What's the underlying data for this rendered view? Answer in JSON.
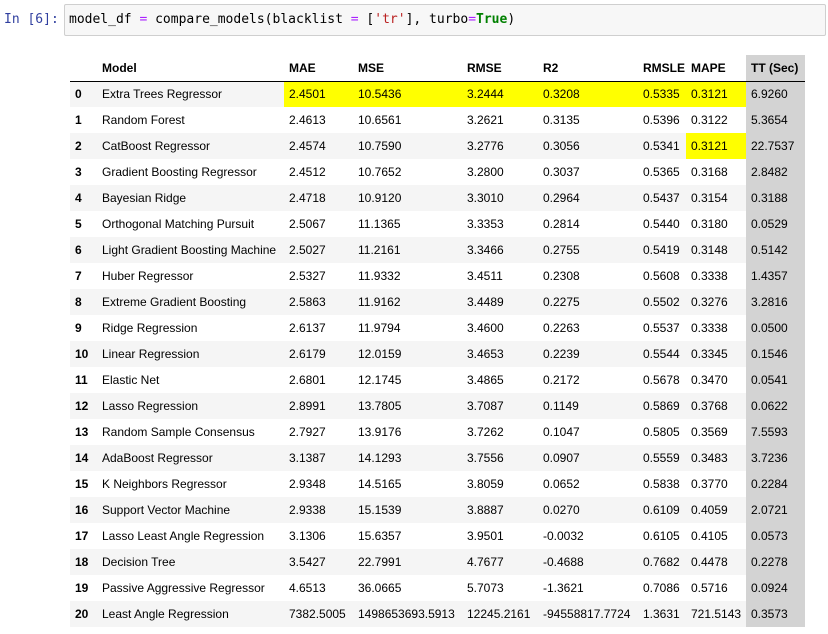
{
  "cell": {
    "prompt": "In [6]:",
    "code": {
      "var": "model_df",
      "assign": "=",
      "func": "compare_models(blacklist ",
      "eq1": "=",
      "open": " [",
      "str": "'tr'",
      "mid": "], turbo",
      "eq2": "=",
      "kw": "True",
      "close": ")"
    }
  },
  "table": {
    "columns": [
      "",
      "Model",
      "MAE",
      "MSE",
      "RMSE",
      "R2",
      "RMSLE",
      "MAPE",
      "TT (Sec)"
    ],
    "rows": [
      {
        "idx": "0",
        "model": "Extra Trees Regressor",
        "mae": "2.4501",
        "mse": "10.5436",
        "rmse": "3.2444",
        "r2": "0.3208",
        "rmsle": "0.5335",
        "mape": "0.3121",
        "tt": "6.9260"
      },
      {
        "idx": "1",
        "model": "Random Forest",
        "mae": "2.4613",
        "mse": "10.6561",
        "rmse": "3.2621",
        "r2": "0.3135",
        "rmsle": "0.5396",
        "mape": "0.3122",
        "tt": "5.3654"
      },
      {
        "idx": "2",
        "model": "CatBoost Regressor",
        "mae": "2.4574",
        "mse": "10.7590",
        "rmse": "3.2776",
        "r2": "0.3056",
        "rmsle": "0.5341",
        "mape": "0.3121",
        "tt": "22.7537"
      },
      {
        "idx": "3",
        "model": "Gradient Boosting Regressor",
        "mae": "2.4512",
        "mse": "10.7652",
        "rmse": "3.2800",
        "r2": "0.3037",
        "rmsle": "0.5365",
        "mape": "0.3168",
        "tt": "2.8482"
      },
      {
        "idx": "4",
        "model": "Bayesian Ridge",
        "mae": "2.4718",
        "mse": "10.9120",
        "rmse": "3.3010",
        "r2": "0.2964",
        "rmsle": "0.5437",
        "mape": "0.3154",
        "tt": "0.3188"
      },
      {
        "idx": "5",
        "model": "Orthogonal Matching Pursuit",
        "mae": "2.5067",
        "mse": "11.1365",
        "rmse": "3.3353",
        "r2": "0.2814",
        "rmsle": "0.5440",
        "mape": "0.3180",
        "tt": "0.0529"
      },
      {
        "idx": "6",
        "model": "Light Gradient Boosting Machine",
        "mae": "2.5027",
        "mse": "11.2161",
        "rmse": "3.3466",
        "r2": "0.2755",
        "rmsle": "0.5419",
        "mape": "0.3148",
        "tt": "0.5142"
      },
      {
        "idx": "7",
        "model": "Huber Regressor",
        "mae": "2.5327",
        "mse": "11.9332",
        "rmse": "3.4511",
        "r2": "0.2308",
        "rmsle": "0.5608",
        "mape": "0.3338",
        "tt": "1.4357"
      },
      {
        "idx": "8",
        "model": "Extreme Gradient Boosting",
        "mae": "2.5863",
        "mse": "11.9162",
        "rmse": "3.4489",
        "r2": "0.2275",
        "rmsle": "0.5502",
        "mape": "0.3276",
        "tt": "3.2816"
      },
      {
        "idx": "9",
        "model": "Ridge Regression",
        "mae": "2.6137",
        "mse": "11.9794",
        "rmse": "3.4600",
        "r2": "0.2263",
        "rmsle": "0.5537",
        "mape": "0.3338",
        "tt": "0.0500"
      },
      {
        "idx": "10",
        "model": "Linear Regression",
        "mae": "2.6179",
        "mse": "12.0159",
        "rmse": "3.4653",
        "r2": "0.2239",
        "rmsle": "0.5544",
        "mape": "0.3345",
        "tt": "0.1546"
      },
      {
        "idx": "11",
        "model": "Elastic Net",
        "mae": "2.6801",
        "mse": "12.1745",
        "rmse": "3.4865",
        "r2": "0.2172",
        "rmsle": "0.5678",
        "mape": "0.3470",
        "tt": "0.0541"
      },
      {
        "idx": "12",
        "model": "Lasso Regression",
        "mae": "2.8991",
        "mse": "13.7805",
        "rmse": "3.7087",
        "r2": "0.1149",
        "rmsle": "0.5869",
        "mape": "0.3768",
        "tt": "0.0622"
      },
      {
        "idx": "13",
        "model": "Random Sample Consensus",
        "mae": "2.7927",
        "mse": "13.9176",
        "rmse": "3.7262",
        "r2": "0.1047",
        "rmsle": "0.5805",
        "mape": "0.3569",
        "tt": "7.5593"
      },
      {
        "idx": "14",
        "model": "AdaBoost Regressor",
        "mae": "3.1387",
        "mse": "14.1293",
        "rmse": "3.7556",
        "r2": "0.0907",
        "rmsle": "0.5559",
        "mape": "0.3483",
        "tt": "3.7236"
      },
      {
        "idx": "15",
        "model": "K Neighbors Regressor",
        "mae": "2.9348",
        "mse": "14.5165",
        "rmse": "3.8059",
        "r2": "0.0652",
        "rmsle": "0.5838",
        "mape": "0.3770",
        "tt": "0.2284"
      },
      {
        "idx": "16",
        "model": "Support Vector Machine",
        "mae": "2.9338",
        "mse": "15.1539",
        "rmse": "3.8887",
        "r2": "0.0270",
        "rmsle": "0.6109",
        "mape": "0.4059",
        "tt": "2.0721"
      },
      {
        "idx": "17",
        "model": "Lasso Least Angle Regression",
        "mae": "3.1306",
        "mse": "15.6357",
        "rmse": "3.9501",
        "r2": "-0.0032",
        "rmsle": "0.6105",
        "mape": "0.4105",
        "tt": "0.0573"
      },
      {
        "idx": "18",
        "model": "Decision Tree",
        "mae": "3.5427",
        "mse": "22.7991",
        "rmse": "4.7677",
        "r2": "-0.4688",
        "rmsle": "0.7682",
        "mape": "0.4478",
        "tt": "0.2278"
      },
      {
        "idx": "19",
        "model": "Passive Aggressive Regressor",
        "mae": "4.6513",
        "mse": "36.0665",
        "rmse": "5.7073",
        "r2": "-1.3621",
        "rmsle": "0.7086",
        "mape": "0.5716",
        "tt": "0.0924"
      },
      {
        "idx": "20",
        "model": "Least Angle Regression",
        "mae": "7382.5005",
        "mse": "1498653693.5913",
        "rmse": "12245.2161",
        "r2": "-94558817.7724",
        "rmsle": "1.3631",
        "mape": "721.5143",
        "tt": "0.3573"
      }
    ],
    "highlight_color": "#ffff00",
    "tt_column_color": "#d3d3d3"
  }
}
